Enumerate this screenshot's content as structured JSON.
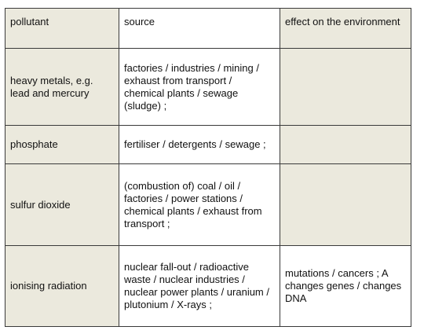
{
  "table": {
    "headers": {
      "pollutant": "pollutant",
      "source": "source",
      "effect": "effect on the environment"
    },
    "rows": [
      {
        "pollutant": "heavy metals, e.g. lead and mercury",
        "source": "factories / industries / mining / exhaust from transport / chemical plants / sewage (sludge) ;",
        "effect": ""
      },
      {
        "pollutant": "phosphate",
        "source": "fertiliser / detergents / sewage ;",
        "effect": ""
      },
      {
        "pollutant": "sulfur dioxide",
        "source": "(combustion of) coal / oil / factories / power stations / chemical plants / exhaust from transport ;",
        "effect": ""
      },
      {
        "pollutant": "ionising radiation",
        "source": "nuclear fall-out / radioactive waste / nuclear industries / nuclear power plants / uranium / plutonium / X-rays ;",
        "effect": "mutations / cancers ; A changes genes / changes DNA"
      }
    ]
  },
  "colors": {
    "shade": "#ebe9dd",
    "border": "#3a3a3a",
    "text": "#111111"
  }
}
